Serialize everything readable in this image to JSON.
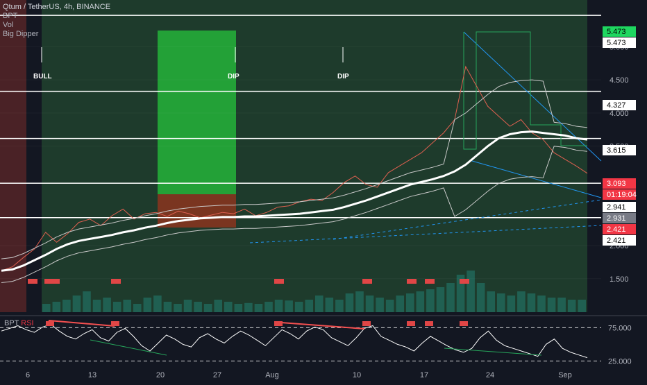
{
  "legend": {
    "title": "Qtum / TetherUS, 4h, BINANCE",
    "indicators": [
      "BPT",
      "Vol",
      "Big Dipper"
    ]
  },
  "indicator_pane": {
    "name": "BPT",
    "name_suffix": "RSI"
  },
  "markers": [
    {
      "label": "BULL",
      "position": "bar-7-ish"
    },
    {
      "label": "DIP",
      "position": "Jul-27"
    },
    {
      "label": "DIP",
      "position": "Aug-3"
    }
  ],
  "colors": {
    "background": "#131722",
    "green_zone": "#1e3b2c",
    "red_zone": "#4a2226",
    "bright_green": "#23a137",
    "brown": "#7a3520",
    "ma_line": "#ffffff",
    "bb_line": "#c9c9c9",
    "level_line": "#ffffff",
    "trend_line": "#2196f3",
    "rsi_line": "#ffffff",
    "rsi_div_bear": "#f55050",
    "rsi_div_bull": "#26a65b",
    "signal_red": "#e04646"
  },
  "chart_data": {
    "type": "line",
    "symbol": "QTUM/USDT",
    "timeframe": "4h",
    "exchange": "BINANCE",
    "x_ticks": [
      "6",
      "13",
      "20",
      "27",
      "Aug",
      "10",
      "17",
      "24",
      "Sep"
    ],
    "y_ticks": [
      "5.000",
      "4.500",
      "4.000",
      "3.500",
      "2.000",
      "1.500"
    ],
    "ylim": [
      1.1,
      5.6
    ],
    "price_labels": [
      {
        "value": "5.473",
        "style": "green-box"
      },
      {
        "value": "5.473",
        "style": "white-box"
      },
      {
        "value": "4.327",
        "style": "white-box"
      },
      {
        "value": "3.615",
        "style": "white-box"
      },
      {
        "value": "3.093",
        "style": "red-box"
      },
      {
        "value": "01:19:04",
        "style": "red-box"
      },
      {
        "value": "2.941",
        "style": "white-box"
      },
      {
        "value": "2.931",
        "style": "gray-box"
      },
      {
        "value": "2.421",
        "style": "red-box"
      },
      {
        "value": "2.421",
        "style": "white-box"
      }
    ],
    "horizontal_levels": [
      5.473,
      4.327,
      3.615,
      2.941,
      2.421
    ],
    "series": [
      {
        "values": [
          1.62,
          1.64,
          1.7,
          1.78,
          1.86,
          1.95,
          2.02,
          2.07,
          2.1,
          2.13,
          2.16,
          2.2,
          2.23,
          2.27,
          2.3,
          2.34,
          2.37,
          2.39,
          2.41,
          2.42,
          2.43,
          2.43,
          2.44,
          2.44,
          2.45,
          2.46,
          2.47,
          2.48,
          2.5,
          2.52,
          2.54,
          2.58,
          2.63,
          2.68,
          2.74,
          2.8,
          2.86,
          2.92,
          2.96,
          3.0,
          3.05,
          3.12,
          3.22,
          3.36,
          3.5,
          3.62,
          3.68,
          3.71,
          3.72,
          3.7,
          3.68,
          3.66,
          3.62,
          3.6
        ]
      },
      {
        "values": [
          1.62,
          1.68,
          1.82,
          1.95,
          2.2,
          2.05,
          2.18,
          2.35,
          2.4,
          2.3,
          2.45,
          2.55,
          2.4,
          2.48,
          2.5,
          2.44,
          2.52,
          2.48,
          2.42,
          2.46,
          2.5,
          2.48,
          2.55,
          2.45,
          2.5,
          2.58,
          2.6,
          2.66,
          2.7,
          2.68,
          2.8,
          2.95,
          3.05,
          2.92,
          2.88,
          3.1,
          3.2,
          3.3,
          3.4,
          3.55,
          3.7,
          3.9,
          4.7,
          4.4,
          4.1,
          3.95,
          3.8,
          3.9,
          3.7,
          3.6,
          3.4,
          3.3,
          3.2,
          3.09
        ]
      }
    ],
    "volume": [
      0.2,
      0.25,
      0.3,
      0.4,
      0.5,
      0.3,
      0.35,
      0.25,
      0.3,
      0.2,
      0.35,
      0.4,
      0.25,
      0.2,
      0.3,
      0.25,
      0.2,
      0.3,
      0.25,
      0.2,
      0.22,
      0.2,
      0.25,
      0.3,
      0.28,
      0.25,
      0.3,
      0.4,
      0.35,
      0.3,
      0.45,
      0.5,
      0.4,
      0.35,
      0.3,
      0.4,
      0.45,
      0.5,
      0.55,
      0.6,
      0.7,
      0.9,
      1.0,
      0.7,
      0.5,
      0.45,
      0.4,
      0.5,
      0.45,
      0.4,
      0.35,
      0.35,
      0.3,
      0.3
    ],
    "indicator": {
      "name": "BPT RSI",
      "y_ticks": [
        "75.000",
        "25.000"
      ],
      "ylim": [
        15,
        90
      ],
      "values": [
        70,
        74,
        78,
        72,
        68,
        76,
        80,
        70,
        62,
        58,
        66,
        72,
        60,
        55,
        68,
        74,
        62,
        48,
        40,
        52,
        64,
        58,
        50,
        46,
        60,
        66,
        58,
        52,
        62,
        70,
        64,
        56,
        48,
        60,
        72,
        66,
        58,
        70,
        76,
        72,
        60,
        54,
        48,
        60,
        74,
        78,
        62,
        56,
        50,
        46,
        40,
        52,
        62,
        55,
        48,
        42,
        38,
        44,
        60,
        70,
        56,
        48,
        44,
        40,
        36,
        32,
        50,
        58,
        44,
        38,
        34,
        30
      ]
    }
  }
}
